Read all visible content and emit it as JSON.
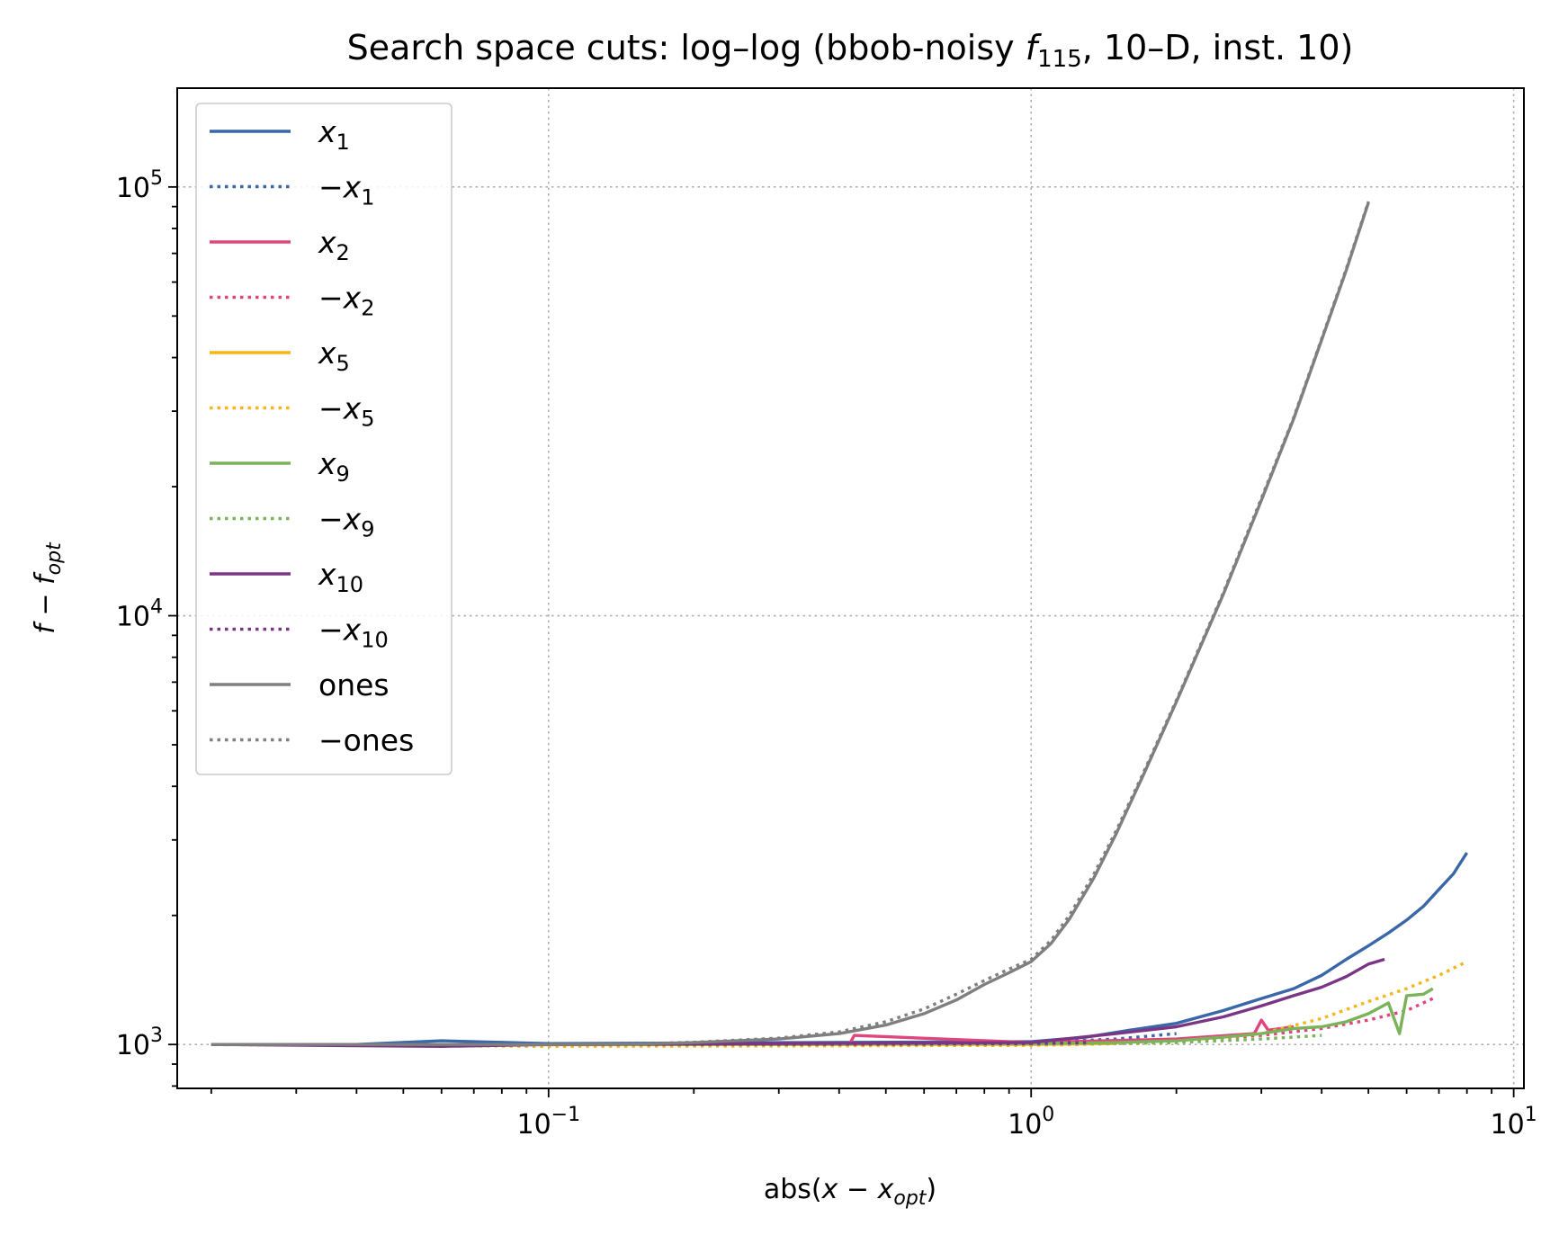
{
  "chart_data": {
    "type": "line",
    "title": {
      "prefix": "Search space cuts: log–log (bbob-noisy ",
      "func": "f",
      "func_sub": "115",
      "suffix": ", 10–D, inst. 10)"
    },
    "xlabel": {
      "prefix": "abs(",
      "var": "x",
      "minus": " − ",
      "var2": "x",
      "sub": "opt",
      "suffix": ")"
    },
    "ylabel": {
      "var": "f",
      "minus": " − ",
      "var2": "f",
      "sub": "opt"
    },
    "x_scale": "log",
    "y_scale": "log",
    "xlim": [
      0.017,
      10.5
    ],
    "ylim": [
      790,
      170000
    ],
    "grid": true,
    "legend_position": "upper left",
    "x_ticks": [
      {
        "base": "10",
        "exp": "−1",
        "value": 0.1
      },
      {
        "base": "10",
        "exp": "0",
        "value": 1
      },
      {
        "base": "10",
        "exp": "1",
        "value": 10
      }
    ],
    "y_ticks": [
      {
        "base": "10",
        "exp": "3",
        "value": 1000
      },
      {
        "base": "10",
        "exp": "4",
        "value": 10000
      },
      {
        "base": "10",
        "exp": "5",
        "value": 100000
      }
    ],
    "series": [
      {
        "name": "x",
        "sub": "1",
        "neg": false,
        "color": "#3a67a8",
        "style": "solid",
        "x": [
          0.02,
          0.04,
          0.06,
          0.1,
          0.3,
          1.0,
          1.3,
          1.6,
          2.0,
          2.5,
          3.0,
          3.5,
          4.0,
          4.5,
          5.0,
          5.5,
          6.0,
          6.5,
          7.0,
          7.5,
          8.0
        ],
        "y": [
          1000,
          1000,
          1020,
          1005,
          1010,
          1015,
          1040,
          1080,
          1120,
          1200,
          1280,
          1350,
          1450,
          1580,
          1700,
          1820,
          1950,
          2100,
          2300,
          2500,
          2800
        ]
      },
      {
        "name": "x",
        "sub": "1",
        "neg": true,
        "color": "#3a67a8",
        "style": "dotted",
        "x": [
          0.02,
          0.05,
          0.1,
          0.3,
          1.0,
          1.5,
          2.0
        ],
        "y": [
          1000,
          995,
          1000,
          1005,
          1010,
          1030,
          1060
        ]
      },
      {
        "name": "x",
        "sub": "2",
        "neg": false,
        "color": "#e0457b",
        "style": "solid",
        "x": [
          0.02,
          0.1,
          0.42,
          0.43,
          1.0,
          2.0,
          2.9,
          3.0,
          3.1,
          3.5
        ],
        "y": [
          1000,
          1000,
          1000,
          1050,
          1010,
          1030,
          1060,
          1140,
          1080,
          1100
        ]
      },
      {
        "name": "x",
        "sub": "2",
        "neg": true,
        "color": "#e0457b",
        "style": "dotted",
        "x": [
          0.02,
          0.1,
          1.0,
          2.0,
          3.0,
          4.0,
          5.0,
          6.0,
          6.8
        ],
        "y": [
          1000,
          1000,
          1005,
          1020,
          1050,
          1090,
          1140,
          1200,
          1280
        ]
      },
      {
        "name": "x",
        "sub": "5",
        "neg": false,
        "color": "#f4b51d",
        "style": "solid",
        "x": [
          0.02,
          0.1,
          0.5,
          1.0,
          1.5
        ],
        "y": [
          1000,
          998,
          1000,
          1000,
          1005
        ]
      },
      {
        "name": "x",
        "sub": "5",
        "neg": true,
        "color": "#f4b51d",
        "style": "dotted",
        "x": [
          0.02,
          0.1,
          1.0,
          2.0,
          3.0,
          4.0,
          5.0,
          6.0,
          7.0,
          8.0
        ],
        "y": [
          1000,
          990,
          995,
          1010,
          1060,
          1150,
          1260,
          1350,
          1450,
          1560
        ]
      },
      {
        "name": "x",
        "sub": "9",
        "neg": false,
        "color": "#7bb35a",
        "style": "solid",
        "x": [
          0.02,
          0.1,
          1.0,
          1.5,
          2.0,
          2.5,
          3.0,
          3.5,
          4.0,
          4.5,
          5.0,
          5.5,
          5.8,
          6.0,
          6.5,
          6.8
        ],
        "y": [
          1000,
          1000,
          1005,
          1010,
          1020,
          1040,
          1060,
          1090,
          1100,
          1130,
          1180,
          1250,
          1060,
          1300,
          1310,
          1350
        ]
      },
      {
        "name": "x",
        "sub": "9",
        "neg": true,
        "color": "#7bb35a",
        "style": "dotted",
        "x": [
          0.02,
          0.1,
          1.0,
          2.0,
          3.0,
          4.0
        ],
        "y": [
          1000,
          1000,
          1002,
          1010,
          1030,
          1050
        ]
      },
      {
        "name": "x",
        "sub": "10",
        "neg": false,
        "color": "#7b3585",
        "style": "solid",
        "x": [
          0.02,
          0.06,
          0.1,
          0.3,
          1.0,
          1.5,
          2.0,
          2.5,
          3.0,
          3.5,
          4.0,
          4.5,
          5.0,
          5.4
        ],
        "y": [
          1000,
          990,
          1000,
          1005,
          1010,
          1060,
          1100,
          1160,
          1230,
          1300,
          1360,
          1440,
          1540,
          1580
        ]
      },
      {
        "name": "x",
        "sub": "10",
        "neg": true,
        "color": "#7b3585",
        "style": "dotted",
        "x": [
          0.02,
          0.1,
          0.5,
          1.0,
          1.3
        ],
        "y": [
          1000,
          1000,
          1002,
          1005,
          1010
        ]
      },
      {
        "name": "ones",
        "sub": "",
        "neg": false,
        "color": "#7f7f7f",
        "style": "solid",
        "x": [
          0.02,
          0.05,
          0.1,
          0.15,
          0.2,
          0.3,
          0.4,
          0.5,
          0.6,
          0.7,
          0.8,
          0.9,
          1.0,
          1.1,
          1.2,
          1.35,
          1.5,
          1.7,
          2.0,
          2.5,
          3.0,
          3.5,
          4.0,
          4.5,
          5.0
        ],
        "y": [
          1000,
          1000,
          1000,
          1002,
          1010,
          1030,
          1060,
          1110,
          1180,
          1270,
          1380,
          1470,
          1560,
          1720,
          1960,
          2450,
          3100,
          4200,
          6300,
          11200,
          18600,
          28800,
          44000,
          64000,
          92000
        ]
      },
      {
        "name": "ones",
        "sub": "",
        "neg": true,
        "color": "#7f7f7f",
        "style": "dotted",
        "x": [
          0.02,
          0.05,
          0.1,
          0.15,
          0.2,
          0.3,
          0.4,
          0.5,
          0.6,
          0.7,
          0.8,
          0.9,
          1.0,
          1.1,
          1.2,
          1.35,
          1.5,
          1.7,
          2.0,
          2.5,
          3.0,
          3.5,
          4.0,
          4.5,
          5.0
        ],
        "y": [
          1000,
          1000,
          1000,
          1003,
          1012,
          1035,
          1070,
          1130,
          1210,
          1310,
          1410,
          1500,
          1580,
          1750,
          2000,
          2500,
          3150,
          4250,
          6350,
          11300,
          18800,
          29000,
          44300,
          64500,
          92500
        ]
      }
    ]
  }
}
